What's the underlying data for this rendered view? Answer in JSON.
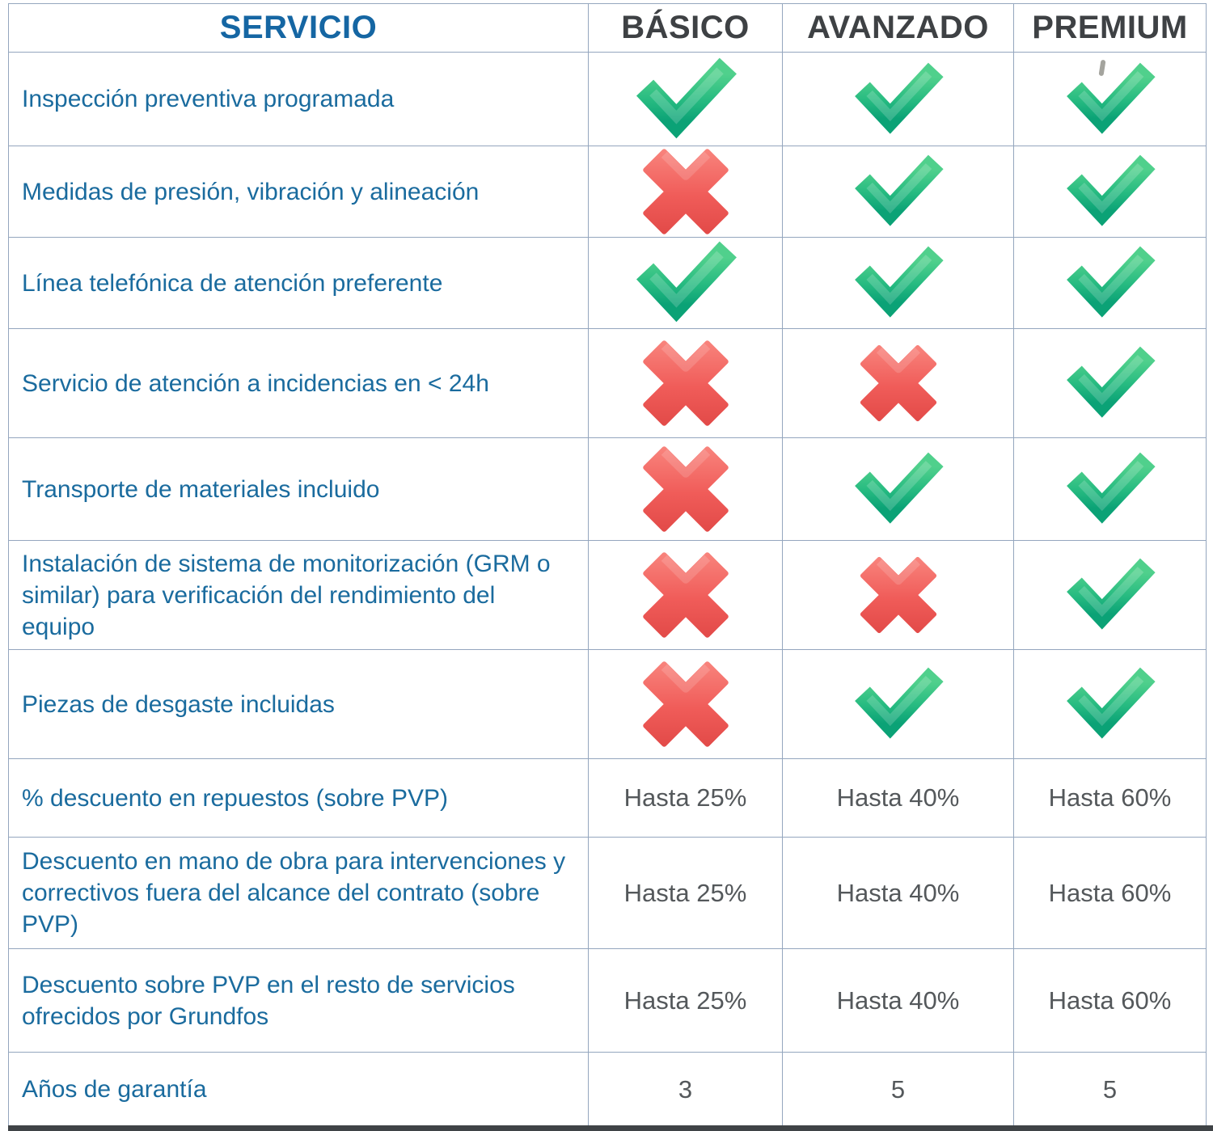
{
  "table": {
    "header": {
      "service": "SERVICIO",
      "plans": [
        "BÁSICO",
        "AVANZADO",
        "PREMIUM"
      ]
    },
    "rows": [
      {
        "label": "Inspección preventiva programada",
        "values": [
          "check",
          "check",
          "check"
        ]
      },
      {
        "label": "Medidas de presión, vibración y alineación",
        "values": [
          "cross",
          "check",
          "check"
        ]
      },
      {
        "label": "Línea telefónica de atención preferente",
        "values": [
          "check",
          "check",
          "check"
        ]
      },
      {
        "label": "Servicio de atención a incidencias en < 24h",
        "values": [
          "cross",
          "cross",
          "check"
        ]
      },
      {
        "label": "Transporte de materiales incluido",
        "values": [
          "cross",
          "check",
          "check"
        ]
      },
      {
        "label": "Instalación de sistema de monitorización (GRM o similar) para verificación del rendimiento del equipo",
        "values": [
          "cross",
          "cross",
          "check"
        ]
      },
      {
        "label": "Piezas de desgaste incluidas",
        "values": [
          "cross",
          "check",
          "check"
        ]
      },
      {
        "label": "% descuento en repuestos (sobre PVP)",
        "values": [
          "Hasta 25%",
          "Hasta 40%",
          "Hasta 60%"
        ]
      },
      {
        "label": "Descuento en mano de obra para intervenciones y correctivos fuera del alcance del contrato (sobre PVP)",
        "values": [
          "Hasta 25%",
          "Hasta 40%",
          "Hasta 60%"
        ]
      },
      {
        "label": "Descuento sobre PVP en el resto de servicios ofrecidos por Grundfos",
        "values": [
          "Hasta 25%",
          "Hasta 40%",
          "Hasta 60%"
        ]
      },
      {
        "label": "Años de garantía",
        "values": [
          "3",
          "5",
          "5"
        ]
      }
    ],
    "icons": {
      "check": "green-check-icon",
      "cross": "red-cross-icon"
    }
  },
  "colors": {
    "label_blue": "#1A6B9E",
    "servicio_blue": "#1566A3",
    "plan_header_gray": "#3E4144",
    "value_gray": "#54585B",
    "grid_line": "#94A6BE",
    "bottom_bar": "#3F4346",
    "check_green_top": "#50D08C",
    "check_green_mid": "#27BB81",
    "check_green_bottom": "#0BA276",
    "cross_red_top": "#F8827B",
    "cross_red_mid": "#F05C59",
    "cross_red_bottom": "#E34B49",
    "background": "#FFFFFF"
  }
}
